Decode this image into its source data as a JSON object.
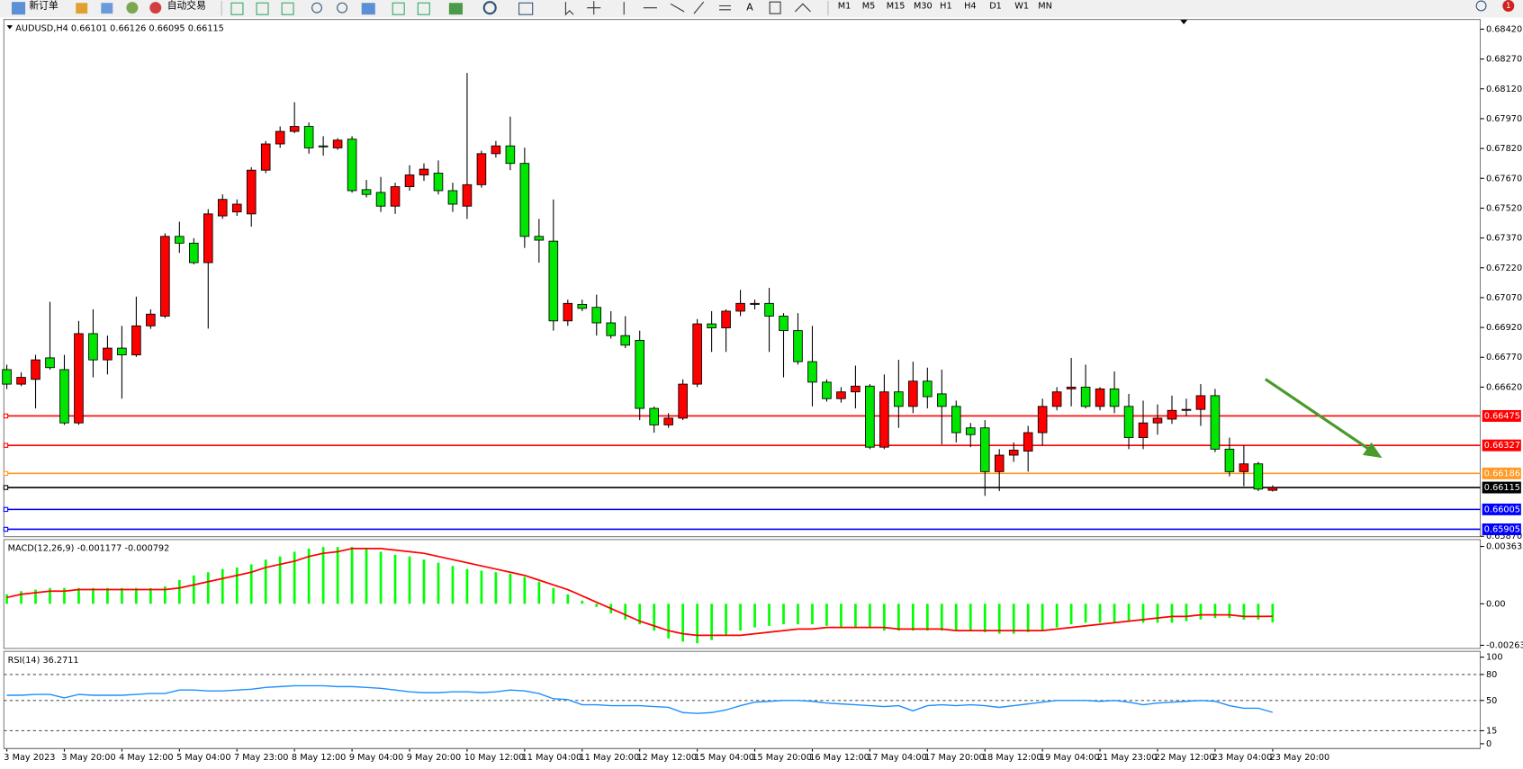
{
  "toolbar": {
    "buttons": [
      "新订单",
      "自动交易"
    ],
    "timeframes": [
      "M1",
      "M5",
      "M15",
      "M30",
      "H1",
      "H4",
      "D1",
      "W1",
      "MN"
    ],
    "badge": "1"
  },
  "chart_data": [
    {
      "type": "candlestick",
      "title": "AUDUSD,H4 0.66101 0.66126 0.66095 0.66115",
      "categories": [
        "3 May 2023",
        null,
        null,
        null,
        "3 May 20:00",
        null,
        null,
        null,
        "4 May 12:00",
        null,
        null,
        null,
        "5 May 04:00",
        null,
        null,
        null,
        "7 May 23:00",
        null,
        null,
        null,
        "8 May 12:00",
        null,
        null,
        null,
        "9 May 04:00",
        null,
        null,
        null,
        "9 May 20:00",
        null,
        null,
        null,
        "10 May 12:00",
        null,
        null,
        null,
        "11 May 04:00",
        null,
        null,
        null,
        "11 May 20:00",
        null,
        null,
        null,
        "12 May 12:00",
        null,
        null,
        null,
        "15 May 04:00",
        null,
        null,
        null,
        "15 May 20:00",
        null,
        null,
        null,
        "16 May 12:00",
        null,
        null,
        null,
        "17 May 04:00",
        null,
        null,
        null,
        "17 May 20:00",
        null,
        null,
        null,
        "18 May 12:00",
        null,
        null,
        null,
        "19 May 04:00",
        null,
        null,
        null,
        "21 May 23:00",
        null,
        null,
        null,
        "22 May 12:00",
        null,
        null,
        null,
        "23 May 04:00",
        null,
        null,
        null,
        "23 May 20:00"
      ],
      "open": [
        0.66708,
        0.66635,
        0.66659,
        0.66767,
        0.66708,
        0.6644,
        0.66889,
        0.66757,
        0.66816,
        0.66782,
        0.66928,
        0.66977,
        0.67378,
        0.67344,
        0.67246,
        0.67481,
        0.67501,
        0.67491,
        0.67711,
        0.67843,
        0.67906,
        0.67931,
        0.67833,
        0.67823,
        0.67867,
        0.67613,
        0.67599,
        0.6753,
        0.67628,
        0.67687,
        0.67696,
        0.67608,
        0.6753,
        0.67638,
        0.67794,
        0.67833,
        0.67745,
        0.67378,
        0.67354,
        0.66953,
        0.67036,
        0.67021,
        0.66943,
        0.66879,
        0.66855,
        0.66513,
        0.6643,
        0.66464,
        0.66635,
        0.66938,
        0.66918,
        0.67002,
        0.67036,
        0.67041,
        0.66977,
        0.66904,
        0.66748,
        0.66645,
        0.66562,
        0.66596,
        0.66625,
        0.66318,
        0.66596,
        0.66523,
        0.6665,
        0.66586,
        0.66523,
        0.66415,
        0.66415,
        0.66195,
        0.66278,
        0.66298,
        0.66391,
        0.66523,
        0.66611,
        0.6662,
        0.66523,
        0.66611,
        0.66523,
        0.66366,
        0.6644,
        0.66459,
        0.66503,
        0.66508,
        0.66577,
        0.66308,
        0.66195,
        0.66234,
        0.66101
      ],
      "high": [
        0.66733,
        0.66694,
        0.66782,
        0.67049,
        0.66782,
        0.66953,
        0.67011,
        0.66879,
        0.66928,
        0.67075,
        0.67011,
        0.67393,
        0.67452,
        0.67369,
        0.67515,
        0.67589,
        0.67564,
        0.67726,
        0.67858,
        0.67931,
        0.68053,
        0.67951,
        0.67882,
        0.67872,
        0.67882,
        0.67662,
        0.67677,
        0.67648,
        0.67736,
        0.67745,
        0.6776,
        0.67648,
        0.682,
        0.67809,
        0.67858,
        0.6798,
        0.67824,
        0.67466,
        0.67564,
        0.6706,
        0.6706,
        0.67085,
        0.67002,
        0.66977,
        0.66904,
        0.66523,
        0.66489,
        0.66659,
        0.66962,
        0.67002,
        0.67011,
        0.67109,
        0.6706,
        0.67119,
        0.66992,
        0.66992,
        0.66928,
        0.66659,
        0.6662,
        0.66728,
        0.66635,
        0.66684,
        0.66757,
        0.66748,
        0.66718,
        0.66708,
        0.66552,
        0.6644,
        0.66454,
        0.66308,
        0.66342,
        0.66425,
        0.66562,
        0.6662,
        0.66767,
        0.66733,
        0.6662,
        0.66699,
        0.66586,
        0.66552,
        0.66533,
        0.66577,
        0.66562,
        0.66635,
        0.66611,
        0.66366,
        0.66327,
        0.66244,
        0.66126
      ],
      "low": [
        0.6661,
        0.66625,
        0.66513,
        0.66708,
        0.6643,
        0.6643,
        0.66669,
        0.66684,
        0.66562,
        0.66772,
        0.66913,
        0.66967,
        0.67295,
        0.67237,
        0.66914,
        0.67466,
        0.67481,
        0.67427,
        0.67696,
        0.67823,
        0.67897,
        0.67794,
        0.67784,
        0.67813,
        0.67598,
        0.67574,
        0.67501,
        0.67491,
        0.67608,
        0.67657,
        0.67589,
        0.67501,
        0.67466,
        0.67623,
        0.67774,
        0.67711,
        0.6732,
        0.67246,
        0.66904,
        0.66928,
        0.67002,
        0.66879,
        0.66864,
        0.66816,
        0.66454,
        0.66391,
        0.66415,
        0.66454,
        0.6662,
        0.66797,
        0.66797,
        0.66977,
        0.67011,
        0.66797,
        0.66669,
        0.66733,
        0.66523,
        0.66547,
        0.66542,
        0.66513,
        0.66308,
        0.66308,
        0.66415,
        0.66489,
        0.66513,
        0.66332,
        0.66342,
        0.66318,
        0.66073,
        0.66097,
        0.66244,
        0.66195,
        0.66327,
        0.66503,
        0.66523,
        0.66513,
        0.66503,
        0.66489,
        0.66308,
        0.66308,
        0.66381,
        0.66435,
        0.66474,
        0.66425,
        0.66293,
        0.66171,
        0.66122,
        0.66097,
        0.66095
      ],
      "close": [
        0.66635,
        0.66669,
        0.66757,
        0.66718,
        0.6644,
        0.66889,
        0.66757,
        0.66816,
        0.66782,
        0.66928,
        0.66987,
        0.67378,
        0.67344,
        0.67246,
        0.67491,
        0.67564,
        0.6754,
        0.67711,
        0.67843,
        0.67906,
        0.67931,
        0.67823,
        0.67828,
        0.67862,
        0.67608,
        0.67589,
        0.6753,
        0.67628,
        0.67687,
        0.67716,
        0.67608,
        0.6754,
        0.67638,
        0.67794,
        0.67833,
        0.67745,
        0.67378,
        0.67359,
        0.66953,
        0.67041,
        0.67016,
        0.66943,
        0.66879,
        0.66831,
        0.66513,
        0.6643,
        0.66464,
        0.66635,
        0.66938,
        0.66918,
        0.67002,
        0.67041,
        0.67041,
        0.66977,
        0.66904,
        0.66748,
        0.66645,
        0.66562,
        0.66596,
        0.66625,
        0.66318,
        0.66596,
        0.66523,
        0.6665,
        0.66572,
        0.66523,
        0.66391,
        0.66381,
        0.66195,
        0.66278,
        0.66303,
        0.66391,
        0.66523,
        0.66596,
        0.6662,
        0.66523,
        0.66611,
        0.66523,
        0.66366,
        0.6644,
        0.66464,
        0.66503,
        0.66508,
        0.66577,
        0.66308,
        0.66195,
        0.66234,
        0.66107,
        0.66115
      ],
      "up_color": "#ff0000",
      "down_color": "#00e600",
      "ylim": [
        0.65868,
        0.68469
      ],
      "yticks": [
        {
          "value": 0.6842,
          "label": "0.68420"
        },
        {
          "value": 0.6827,
          "label": "0.68270"
        },
        {
          "value": 0.6812,
          "label": "0.68120"
        },
        {
          "value": 0.6797,
          "label": "0.67970"
        },
        {
          "value": 0.6782,
          "label": "0.67820"
        },
        {
          "value": 0.6767,
          "label": "0.67670"
        },
        {
          "value": 0.6752,
          "label": "0.67520"
        },
        {
          "value": 0.6737,
          "label": "0.67370"
        },
        {
          "value": 0.6722,
          "label": "0.67220"
        },
        {
          "value": 0.6707,
          "label": "0.67070"
        },
        {
          "value": 0.6692,
          "label": "0.66920"
        },
        {
          "value": 0.6677,
          "label": "0.66770"
        },
        {
          "value": 0.6662,
          "label": "0.66620"
        },
        {
          "value": 0.6587,
          "label": "0.65870"
        }
      ],
      "price_lines": [
        {
          "value": 0.66475,
          "color": "#ff0000"
        },
        {
          "value": 0.66327,
          "color": "#ff0000"
        },
        {
          "value": 0.66186,
          "color": "#ff9922"
        },
        {
          "value": 0.66115,
          "color": "#000000"
        },
        {
          "value": 0.66005,
          "color": "#0000ff"
        },
        {
          "value": 0.65905,
          "color": "#0000ff"
        }
      ]
    },
    {
      "type": "macd",
      "title": "MACD(12,26,9) -0.001177 -0.000792",
      "histogram": {
        "color": "#00ff00",
        "values": [
          0.0006,
          0.0008,
          0.0009,
          0.001,
          0.001,
          0.001,
          0.001,
          0.001,
          0.001,
          0.001,
          0.001,
          0.0011,
          0.0015,
          0.0018,
          0.002,
          0.0022,
          0.0023,
          0.0025,
          0.0028,
          0.003,
          0.0033,
          0.0035,
          0.0036,
          0.0036,
          0.0036,
          0.0035,
          0.0033,
          0.0031,
          0.003,
          0.0028,
          0.0026,
          0.0024,
          0.0022,
          0.0021,
          0.002,
          0.0019,
          0.0017,
          0.0014,
          0.001,
          0.0006,
          0.0002,
          -0.0002,
          -0.0006,
          -0.001,
          -0.0013,
          -0.0017,
          -0.0022,
          -0.0024,
          -0.0025,
          -0.0023,
          -0.002,
          -0.0017,
          -0.0015,
          -0.0014,
          -0.0013,
          -0.0013,
          -0.0013,
          -0.0014,
          -0.0015,
          -0.0015,
          -0.0015,
          -0.0017,
          -0.0017,
          -0.0017,
          -0.0017,
          -0.0017,
          -0.0017,
          -0.0017,
          -0.0018,
          -0.0019,
          -0.0019,
          -0.0018,
          -0.0017,
          -0.0015,
          -0.0013,
          -0.0012,
          -0.0012,
          -0.0012,
          -0.0011,
          -0.0012,
          -0.0012,
          -0.0012,
          -0.0011,
          -0.001,
          -0.0009,
          -0.0009,
          -0.001,
          -0.001,
          -0.001177
        ]
      },
      "signal": {
        "color": "#ff0000",
        "values": [
          0.0004,
          0.0006,
          0.0007,
          0.0008,
          0.0008,
          0.0009,
          0.0009,
          0.0009,
          0.0009,
          0.0009,
          0.0009,
          0.0009,
          0.001,
          0.0012,
          0.0014,
          0.0016,
          0.0018,
          0.002,
          0.0023,
          0.0025,
          0.0027,
          0.003,
          0.0032,
          0.0033,
          0.0035,
          0.0035,
          0.0035,
          0.0034,
          0.0033,
          0.0032,
          0.003,
          0.0028,
          0.0026,
          0.0024,
          0.0022,
          0.002,
          0.0018,
          0.0015,
          0.0012,
          0.0009,
          0.0005,
          0.0001,
          -0.0003,
          -0.0007,
          -0.0011,
          -0.0014,
          -0.0017,
          -0.0019,
          -0.002,
          -0.002,
          -0.002,
          -0.002,
          -0.0019,
          -0.0018,
          -0.0017,
          -0.0016,
          -0.0016,
          -0.0015,
          -0.0015,
          -0.0015,
          -0.0015,
          -0.0015,
          -0.0016,
          -0.0016,
          -0.0016,
          -0.0016,
          -0.0017,
          -0.0017,
          -0.0017,
          -0.0017,
          -0.0017,
          -0.0017,
          -0.0017,
          -0.0016,
          -0.0015,
          -0.0014,
          -0.0013,
          -0.0012,
          -0.0011,
          -0.001,
          -0.0009,
          -0.0008,
          -0.0008,
          -0.0007,
          -0.0007,
          -0.0007,
          -0.0008,
          -0.0008,
          -0.000792
        ]
      },
      "ylim": [
        -0.00283,
        0.00407
      ],
      "yticks": [
        0.003635,
        {
          "value": 0,
          "label": "0.00"
        },
        -0.00263
      ]
    },
    {
      "type": "line",
      "title": "RSI(14) 36.2711",
      "color": "#1e90ff",
      "values": [
        56,
        56,
        57,
        57,
        53,
        57,
        56,
        56,
        56,
        57,
        58,
        58,
        62,
        62,
        61,
        61,
        62,
        63,
        65,
        66,
        67,
        67,
        67,
        66,
        66,
        65,
        64,
        62,
        60,
        59,
        59,
        60,
        60,
        59,
        60,
        62,
        61,
        58,
        52,
        51,
        45,
        45,
        44,
        44,
        44,
        43,
        42,
        36,
        35,
        36,
        39,
        44,
        48,
        49,
        50,
        50,
        49,
        47,
        46,
        45,
        44,
        43,
        44,
        38,
        44,
        45,
        44,
        45,
        44,
        42,
        44,
        46,
        48,
        50,
        50,
        50,
        49,
        50,
        48,
        45,
        47,
        48,
        49,
        50,
        49,
        44,
        41,
        41,
        36.2711
      ],
      "ylim": [
        -5.6,
        106.7
      ],
      "yticks": [
        100,
        80,
        50,
        15,
        0
      ],
      "levels": [
        80,
        50,
        15
      ]
    }
  ]
}
